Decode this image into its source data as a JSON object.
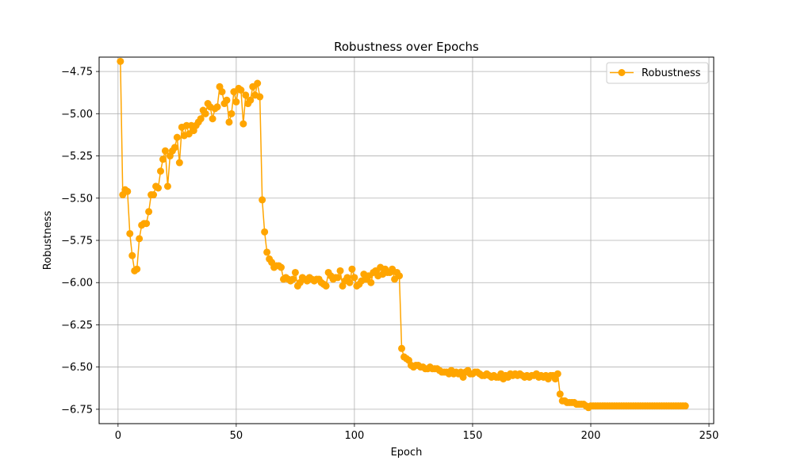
{
  "chart_data": {
    "type": "line",
    "title": "Robustness over Epochs",
    "xlabel": "Epoch",
    "ylabel": "Robustness",
    "xlim": [
      -8,
      252
    ],
    "ylim": [
      -6.835,
      -4.665
    ],
    "xticks": [
      0,
      50,
      100,
      150,
      200,
      250
    ],
    "yticks": [
      -4.75,
      -5.0,
      -5.25,
      -5.5,
      -5.75,
      -6.0,
      -6.25,
      -6.5,
      -6.75
    ],
    "xtick_labels": [
      "0",
      "50",
      "100",
      "150",
      "200",
      "250"
    ],
    "ytick_labels": [
      "−4.75",
      "−5.00",
      "−5.25",
      "−5.50",
      "−5.75",
      "−6.00",
      "−6.25",
      "−6.50",
      "−6.75"
    ],
    "grid": true,
    "legend_position": "top-right",
    "series": [
      {
        "name": "Robustness",
        "color": "#ffa500",
        "marker": "circle",
        "x_start": 1,
        "x_step": 1,
        "values": [
          -4.69,
          -5.48,
          -5.45,
          -5.46,
          -5.71,
          -5.84,
          -5.93,
          -5.92,
          -5.74,
          -5.66,
          -5.65,
          -5.65,
          -5.58,
          -5.48,
          -5.48,
          -5.43,
          -5.44,
          -5.34,
          -5.27,
          -5.22,
          -5.43,
          -5.25,
          -5.22,
          -5.2,
          -5.14,
          -5.29,
          -5.08,
          -5.13,
          -5.07,
          -5.12,
          -5.07,
          -5.1,
          -5.07,
          -5.05,
          -5.03,
          -4.98,
          -5.0,
          -4.94,
          -4.96,
          -5.03,
          -4.97,
          -4.96,
          -4.84,
          -4.87,
          -4.94,
          -4.92,
          -5.05,
          -5.0,
          -4.87,
          -4.93,
          -4.85,
          -4.86,
          -5.06,
          -4.89,
          -4.94,
          -4.92,
          -4.84,
          -4.89,
          -4.82,
          -4.9,
          -5.51,
          -5.7,
          -5.82,
          -5.86,
          -5.88,
          -5.91,
          -5.9,
          -5.9,
          -5.91,
          -5.98,
          -5.97,
          -5.98,
          -5.99,
          -5.98,
          -5.94,
          -6.02,
          -6.0,
          -5.97,
          -5.98,
          -5.99,
          -5.97,
          -5.98,
          -5.99,
          -5.98,
          -5.98,
          -6.0,
          -6.01,
          -6.02,
          -5.94,
          -5.96,
          -5.98,
          -5.97,
          -5.97,
          -5.93,
          -6.02,
          -5.99,
          -5.97,
          -6.0,
          -5.92,
          -5.97,
          -6.02,
          -6.01,
          -5.99,
          -5.95,
          -5.98,
          -5.96,
          -6.0,
          -5.94,
          -5.93,
          -5.96,
          -5.91,
          -5.95,
          -5.92,
          -5.94,
          -5.94,
          -5.92,
          -5.98,
          -5.94,
          -5.96,
          -6.39,
          -6.44,
          -6.45,
          -6.46,
          -6.49,
          -6.5,
          -6.49,
          -6.49,
          -6.5,
          -6.5,
          -6.51,
          -6.51,
          -6.5,
          -6.51,
          -6.51,
          -6.51,
          -6.52,
          -6.53,
          -6.53,
          -6.53,
          -6.54,
          -6.52,
          -6.54,
          -6.53,
          -6.54,
          -6.53,
          -6.56,
          -6.53,
          -6.52,
          -6.54,
          -6.54,
          -6.53,
          -6.53,
          -6.54,
          -6.55,
          -6.55,
          -6.54,
          -6.55,
          -6.56,
          -6.55,
          -6.56,
          -6.56,
          -6.54,
          -6.57,
          -6.55,
          -6.56,
          -6.54,
          -6.55,
          -6.54,
          -6.55,
          -6.54,
          -6.55,
          -6.56,
          -6.55,
          -6.56,
          -6.55,
          -6.55,
          -6.54,
          -6.56,
          -6.55,
          -6.56,
          -6.55,
          -6.57,
          -6.55,
          -6.55,
          -6.57,
          -6.54,
          -6.66,
          -6.7,
          -6.7,
          -6.71,
          -6.71,
          -6.71,
          -6.71,
          -6.72,
          -6.72,
          -6.72,
          -6.72,
          -6.73,
          -6.74,
          -6.73,
          -6.73,
          -6.73,
          -6.73,
          -6.73,
          -6.73,
          -6.73,
          -6.73,
          -6.73,
          -6.73,
          -6.73,
          -6.73,
          -6.73,
          -6.73,
          -6.73,
          -6.73,
          -6.73,
          -6.73,
          -6.73,
          -6.73,
          -6.73,
          -6.73,
          -6.73,
          -6.73,
          -6.73,
          -6.73,
          -6.73,
          -6.73,
          -6.73,
          -6.73,
          -6.73,
          -6.73,
          -6.73,
          -6.73,
          -6.73,
          -6.73,
          -6.73,
          -6.73,
          -6.73,
          -6.73,
          -6.73
        ]
      }
    ]
  }
}
